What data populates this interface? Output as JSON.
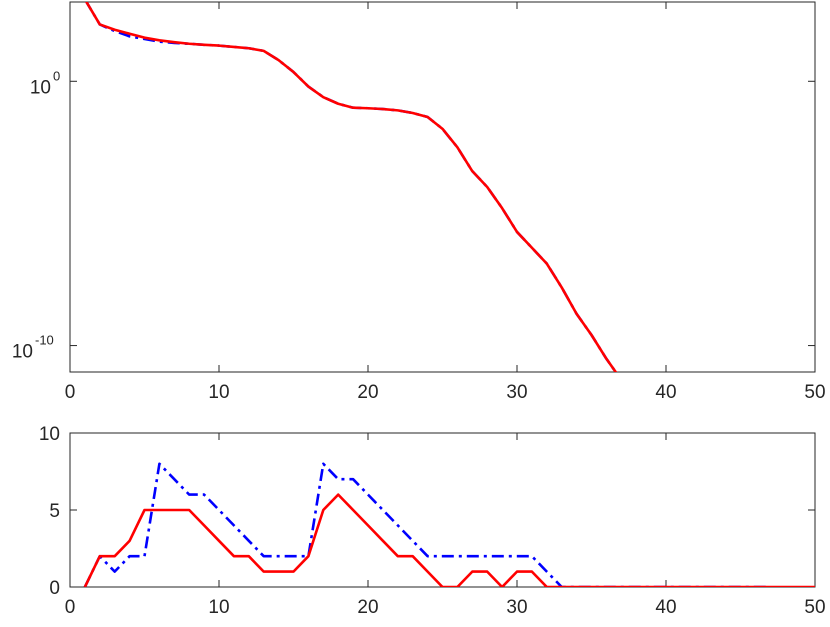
{
  "chart_data": [
    {
      "type": "line",
      "title": "",
      "xlabel": "",
      "ylabel": "",
      "xlim": [
        0,
        50
      ],
      "ylim_log10": [
        -11,
        3
      ],
      "yscale": "log",
      "grid": false,
      "legend": "none",
      "xticks": [
        {
          "value": 0,
          "label": "0"
        },
        {
          "value": 10,
          "label": "10"
        },
        {
          "value": 20,
          "label": "20"
        },
        {
          "value": 30,
          "label": "30"
        },
        {
          "value": 40,
          "label": "40"
        },
        {
          "value": 50,
          "label": "50"
        }
      ],
      "yticks": [
        {
          "log10": 0,
          "base": "10",
          "exp": "0"
        },
        {
          "log10": -10,
          "base": "10",
          "exp": "-10"
        }
      ],
      "series": [
        {
          "color": "#0000ff",
          "dash": "dashdot",
          "x": [
            1,
            2,
            3,
            4,
            5,
            6,
            7,
            8,
            9,
            10,
            11,
            12,
            13,
            14,
            15,
            16,
            17,
            18,
            19,
            20,
            21,
            22,
            23,
            24,
            25,
            26,
            27,
            28,
            29,
            30,
            31,
            32,
            33,
            34,
            35,
            36,
            37,
            38,
            39,
            40,
            41,
            42,
            43,
            44,
            45,
            46,
            47
          ],
          "log10y": [
            3.1,
            2.15,
            1.9,
            1.7,
            1.6,
            1.5,
            1.45,
            1.42,
            1.38,
            1.35,
            1.3,
            1.25,
            1.15,
            0.8,
            0.35,
            -0.2,
            -0.6,
            -0.85,
            -1.0,
            -1.02,
            -1.05,
            -1.1,
            -1.2,
            -1.35,
            -1.8,
            -2.5,
            -3.4,
            -4.0,
            -4.8,
            -5.7,
            -6.3,
            -6.9,
            -7.8,
            -8.8,
            -9.6,
            -10.5,
            -11.3,
            -12.0,
            -12.6,
            -12.85,
            -13.3,
            -13.55,
            -13.8,
            -14.0,
            -14.15,
            -14.7,
            -15.1
          ]
        },
        {
          "color": "#ff0000",
          "dash": "solid",
          "x": [
            1,
            2,
            3,
            4,
            5,
            6,
            7,
            8,
            9,
            10,
            11,
            12,
            13,
            14,
            15,
            16,
            17,
            18,
            19,
            20,
            21,
            22,
            23,
            24,
            25,
            26,
            27,
            28,
            29,
            30,
            31,
            32,
            33,
            34,
            35,
            36,
            37,
            38,
            39,
            40,
            41,
            42,
            43,
            44,
            45,
            46,
            47,
            48,
            49,
            50
          ],
          "log10y": [
            3.1,
            2.15,
            1.95,
            1.8,
            1.65,
            1.55,
            1.48,
            1.42,
            1.38,
            1.35,
            1.3,
            1.25,
            1.15,
            0.8,
            0.35,
            -0.2,
            -0.6,
            -0.85,
            -1.0,
            -1.02,
            -1.05,
            -1.1,
            -1.2,
            -1.35,
            -1.8,
            -2.5,
            -3.4,
            -4.0,
            -4.8,
            -5.7,
            -6.3,
            -6.9,
            -7.8,
            -8.8,
            -9.6,
            -10.5,
            -11.3,
            -12.0,
            -12.6,
            -12.85,
            -13.3,
            -13.55,
            -13.8,
            -14.0,
            -14.15,
            -14.7,
            -15.1,
            -15.3,
            -15.35,
            -15.4
          ]
        }
      ]
    },
    {
      "type": "line",
      "title": "",
      "xlabel": "",
      "ylabel": "",
      "xlim": [
        0,
        50
      ],
      "ylim": [
        0,
        10
      ],
      "grid": false,
      "legend": "none",
      "xticks": [
        {
          "value": 0,
          "label": "0"
        },
        {
          "value": 10,
          "label": "10"
        },
        {
          "value": 20,
          "label": "20"
        },
        {
          "value": 30,
          "label": "30"
        },
        {
          "value": 40,
          "label": "40"
        },
        {
          "value": 50,
          "label": "50"
        }
      ],
      "yticks": [
        {
          "value": 0,
          "label": "0"
        },
        {
          "value": 5,
          "label": "5"
        },
        {
          "value": 10,
          "label": "10"
        }
      ],
      "series": [
        {
          "color": "#0000ff",
          "dash": "dashdot",
          "x": [
            1,
            2,
            3,
            4,
            5,
            6,
            7,
            8,
            9,
            10,
            11,
            12,
            13,
            14,
            15,
            16,
            17,
            18,
            19,
            20,
            21,
            22,
            23,
            24,
            25,
            26,
            27,
            28,
            29,
            30,
            31,
            32,
            33,
            34,
            35,
            36,
            37,
            38,
            39,
            40,
            41,
            42,
            43,
            44,
            45,
            46,
            47
          ],
          "y": [
            0,
            2,
            1,
            2,
            2,
            8,
            7,
            6,
            6,
            5,
            4,
            3,
            2,
            2,
            2,
            2,
            8,
            7,
            7,
            6,
            5,
            4,
            3,
            2,
            2,
            2,
            2,
            2,
            2,
            2,
            2,
            1,
            0,
            0,
            0,
            0,
            0,
            0,
            0,
            0,
            0,
            0,
            0,
            0,
            0,
            0,
            0
          ]
        },
        {
          "color": "#ff0000",
          "dash": "solid",
          "x": [
            1,
            2,
            3,
            4,
            5,
            6,
            7,
            8,
            9,
            10,
            11,
            12,
            13,
            14,
            15,
            16,
            17,
            18,
            19,
            20,
            21,
            22,
            23,
            24,
            25,
            26,
            27,
            28,
            29,
            30,
            31,
            32,
            33,
            34,
            35,
            36,
            37,
            38,
            39,
            40,
            41,
            42,
            43,
            44,
            45,
            46,
            47,
            48,
            49,
            50
          ],
          "y": [
            0,
            2,
            2,
            3,
            5,
            5,
            5,
            5,
            4,
            3,
            2,
            2,
            1,
            1,
            1,
            2,
            5,
            6,
            5,
            4,
            3,
            2,
            2,
            1,
            0,
            0,
            1,
            1,
            0,
            1,
            1,
            0,
            0,
            0,
            0,
            0,
            0,
            0,
            0,
            0,
            0,
            0,
            0,
            0,
            0,
            0,
            0,
            0,
            0,
            0
          ]
        }
      ]
    }
  ]
}
